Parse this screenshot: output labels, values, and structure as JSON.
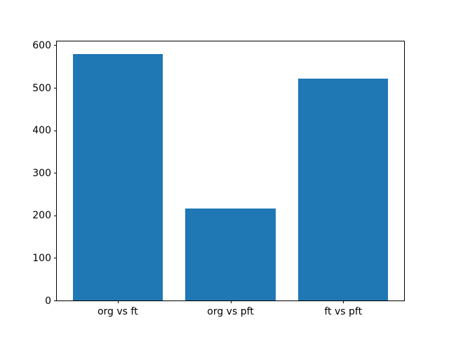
{
  "chart_data": {
    "type": "bar",
    "categories": [
      "org vs ft",
      "org vs pft",
      "ft vs pft"
    ],
    "values": [
      580,
      216,
      522
    ],
    "title": "",
    "xlabel": "",
    "ylabel": "",
    "ylim": [
      0,
      609
    ],
    "yticks": [
      0,
      100,
      200,
      300,
      400,
      500,
      600
    ],
    "bar_width_fraction": 0.8,
    "x_margin_fraction": 0.05,
    "bar_color": "#1f77b4",
    "axis_color": "#000000",
    "background_color": "#ffffff",
    "grid": false,
    "legend": null
  }
}
